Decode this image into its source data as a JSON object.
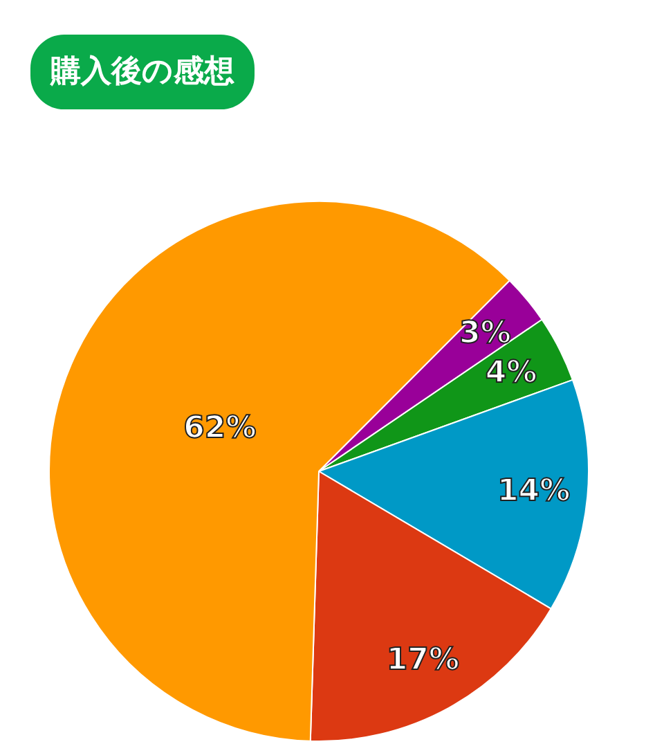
{
  "chart_data": {
    "type": "pie",
    "title": "購入後の感想",
    "categories": [
      null,
      null,
      null,
      null,
      null
    ],
    "values": [
      3,
      4,
      14,
      17,
      62
    ],
    "colors": [
      "#990099",
      "#109618",
      "#0099c6",
      "#dc3912",
      "#ff9900"
    ],
    "value_labels": [
      "3%",
      "4%",
      "14%",
      "17%",
      "62%"
    ]
  }
}
